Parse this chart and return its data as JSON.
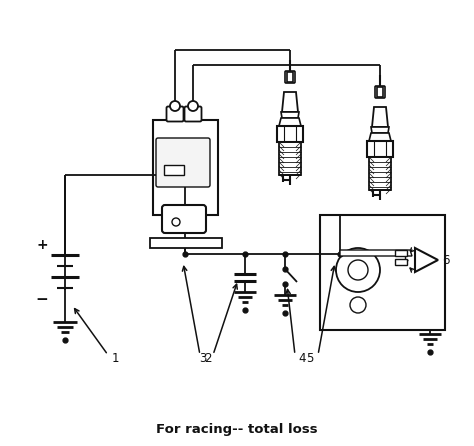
{
  "title": "For racing-- total loss",
  "title_fontsize": 9.5,
  "title_fontweight": "bold",
  "bg_color": "#ffffff",
  "line_color": "#111111",
  "figsize": [
    4.74,
    4.46
  ],
  "dpi": 100,
  "lw": 1.3
}
